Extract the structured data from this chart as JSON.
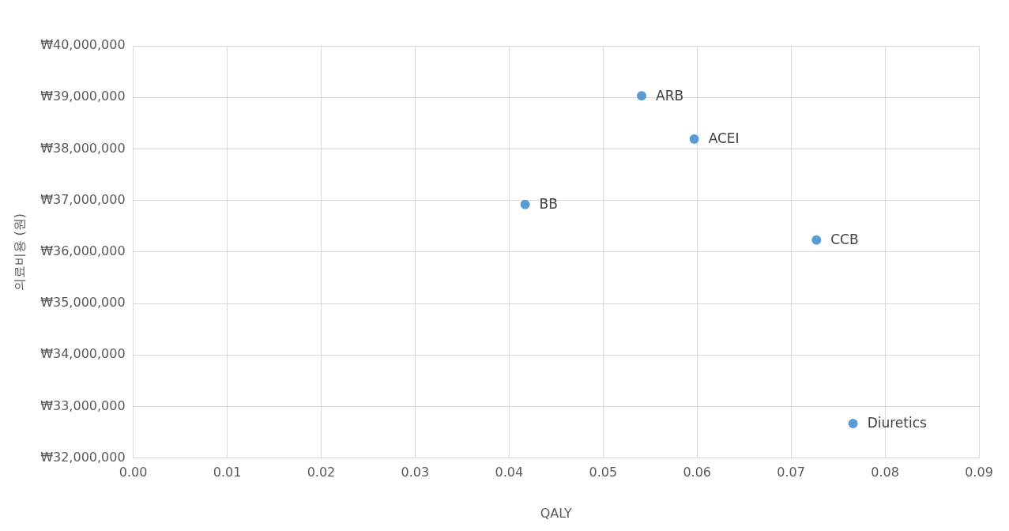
{
  "chart_data": {
    "type": "scatter",
    "xlabel": "QALY",
    "ylabel": "의료비용 (원)",
    "series": [
      {
        "color": "#5b9bd5",
        "x": [
          0.0541,
          0.0597,
          0.0417,
          0.0727,
          0.0766
        ],
        "values": [
          39030000,
          38190000,
          36920000,
          36230000,
          32670000
        ]
      }
    ],
    "annotations": [
      {
        "text": "ARB",
        "x": 0.0541,
        "y": 39030000
      },
      {
        "text": "ACEI",
        "x": 0.0597,
        "y": 38190000
      },
      {
        "text": "BB",
        "x": 0.0417,
        "y": 36920000
      },
      {
        "text": "CCB",
        "x": 0.0727,
        "y": 36230000
      },
      {
        "text": "Diuretics",
        "x": 0.0766,
        "y": 32670000
      }
    ],
    "xlim": [
      0,
      0.09
    ],
    "xticks": [
      {
        "value": 0,
        "label": "0.00"
      },
      {
        "value": 0.01,
        "label": "0.01"
      },
      {
        "value": 0.02,
        "label": "0.02"
      },
      {
        "value": 0.03,
        "label": "0.03"
      },
      {
        "value": 0.04,
        "label": "0.04"
      },
      {
        "value": 0.05,
        "label": "0.05"
      },
      {
        "value": 0.06,
        "label": "0.06"
      },
      {
        "value": 0.07,
        "label": "0.07"
      },
      {
        "value": 0.08,
        "label": "0.08"
      },
      {
        "value": 0.09,
        "label": "0.09"
      }
    ],
    "ylim": [
      32000000,
      40000000
    ],
    "yticks": [
      {
        "value": 32000000,
        "label": "₩32,000,000"
      },
      {
        "value": 33000000,
        "label": "₩33,000,000"
      },
      {
        "value": 34000000,
        "label": "₩34,000,000"
      },
      {
        "value": 35000000,
        "label": "₩35,000,000"
      },
      {
        "value": 36000000,
        "label": "₩36,000,000"
      },
      {
        "value": 37000000,
        "label": "₩37,000,000"
      },
      {
        "value": 38000000,
        "label": "₩38,000,000"
      },
      {
        "value": 39000000,
        "label": "₩39,000,000"
      },
      {
        "value": 40000000,
        "label": "₩40,000,000"
      }
    ],
    "grid": true,
    "legend": false,
    "marker": "circle"
  }
}
